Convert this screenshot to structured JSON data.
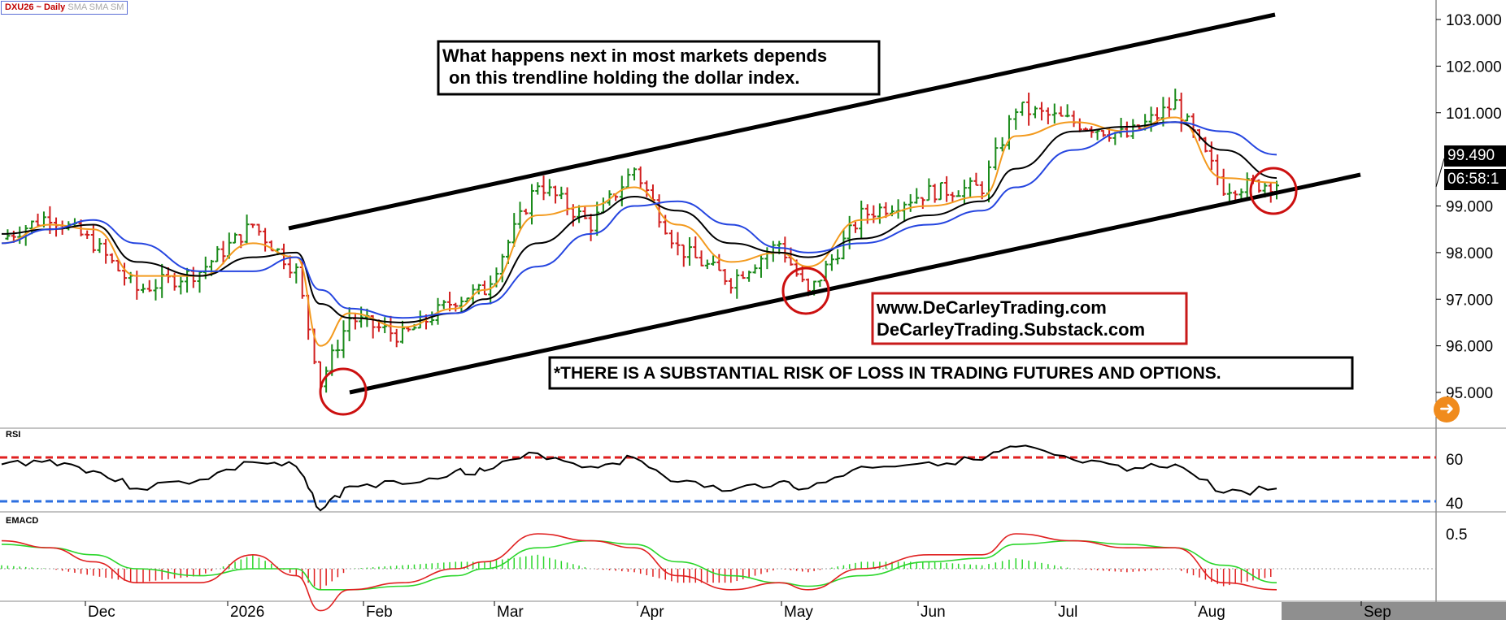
{
  "header": {
    "symbol": "DXU26 ~ Daily",
    "indicators": "SMA SMA SM"
  },
  "price_axis": {
    "labels": [
      "103.000",
      "102.000",
      "101.000",
      "99.000",
      "98.000",
      "97.000",
      "96.000",
      "95.000"
    ],
    "last_price": "99.490",
    "countdown": "06:58:1"
  },
  "time_axis": {
    "labels": [
      "Dec",
      "2026",
      "Feb",
      "Mar",
      "Apr",
      "May",
      "Jun",
      "Jul",
      "Aug",
      "Sep"
    ]
  },
  "annotations": {
    "headline_line1": "What happens next in most markets depends",
    "headline_line2": "on this trendline holding the dollar index.",
    "website1": "www.DeCarleyTrading.com",
    "website2": "DeCarleyTrading.Substack.com",
    "disclaimer": "*THERE IS A SUBSTANTIAL RISK OF LOSS IN TRADING FUTURES AND OPTIONS."
  },
  "rsi_pane": {
    "title": "RSI",
    "labels": [
      "60",
      "40"
    ]
  },
  "macd_pane": {
    "title": "EMACD",
    "labels": [
      "0.5"
    ]
  },
  "colors": {
    "up_bar": "#1a8a1a",
    "down_bar": "#d11f1f",
    "sma_fast": "#f39a1e",
    "sma_mid": "#000000",
    "sma_slow": "#2646e0",
    "rsi_upper": "#e02020",
    "rsi_lower": "#2c6fe0",
    "macd_line": "#e02020",
    "signal_line": "#2bd62b",
    "circle": "#cc1010",
    "future_shade": "#8f8f8f"
  },
  "icons": {
    "navigate": "arrow-right-icon"
  },
  "chart_data": [
    {
      "type": "line",
      "name": "price",
      "price_scale": "linear",
      "ylim": [
        94.6,
        103.2
      ],
      "x": [
        "Nov 21",
        "Dec 1",
        "Dec 10",
        "Dec 19",
        "Jan 1",
        "Jan 12",
        "Jan 21",
        "Jan 26",
        "Feb 1",
        "Feb 12",
        "Feb 23",
        "Mar 1",
        "Mar 12",
        "Mar 23",
        "Apr 1",
        "Apr 10",
        "Apr 21",
        "May 1",
        "May 7",
        "May 18",
        "Jun 1",
        "Jun 12",
        "Jun 19",
        "Jul 1",
        "Jul 12",
        "Jul 22",
        "Aug 1",
        "Aug 12"
      ],
      "close": [
        98.3,
        98.8,
        98.2,
        97.2,
        97.6,
        98.6,
        97.6,
        95.2,
        96.6,
        96.2,
        97.0,
        97.2,
        99.5,
        98.6,
        99.8,
        98.1,
        97.4,
        98.2,
        97.1,
        98.8,
        99.3,
        99.4,
        101.1,
        100.8,
        100.5,
        101.2,
        99.4,
        99.49
      ],
      "series": [
        {
          "name": "SMA",
          "values": [
            98.2,
            98.6,
            98.5,
            97.5,
            97.5,
            98.2,
            97.9,
            96.0,
            96.7,
            96.4,
            96.8,
            97.2,
            98.8,
            99.0,
            99.4,
            98.6,
            97.8,
            98.0,
            97.7,
            98.7,
            99.0,
            99.2,
            100.5,
            100.8,
            100.6,
            100.9,
            99.6,
            99.5
          ]
        },
        {
          "name": "SMA",
          "values": [
            98.4,
            98.5,
            98.6,
            97.8,
            97.5,
            97.9,
            98.0,
            96.9,
            96.6,
            96.5,
            96.7,
            97.0,
            98.2,
            98.8,
            99.2,
            98.9,
            98.2,
            98.0,
            97.9,
            98.3,
            98.8,
            99.1,
            99.8,
            100.6,
            100.7,
            100.8,
            100.2,
            99.6
          ]
        },
        {
          "name": "SMA",
          "values": [
            98.2,
            98.5,
            98.7,
            98.2,
            97.6,
            97.6,
            97.9,
            97.2,
            96.8,
            96.6,
            96.7,
            96.9,
            97.7,
            98.4,
            99.0,
            99.1,
            98.6,
            98.1,
            98.0,
            98.2,
            98.6,
            98.9,
            99.4,
            100.2,
            100.6,
            100.8,
            100.6,
            100.1
          ]
        }
      ],
      "trendlines": [
        {
          "name": "upper channel",
          "from": [
            "Jan 12",
            98.6
          ],
          "to": [
            "Aug 12",
            103.2
          ]
        },
        {
          "name": "lower trendline",
          "from": [
            "Jan 26",
            95.1
          ],
          "to": [
            "Aug 12",
            99.2
          ]
        }
      ],
      "circled_lows": [
        [
          "Jan 26",
          95.1
        ],
        [
          "May 1",
          97.2
        ],
        [
          "Aug 12",
          99.3
        ]
      ],
      "yticks": [
        95,
        96,
        97,
        98,
        99,
        101,
        102,
        103
      ]
    },
    {
      "type": "line",
      "name": "RSI",
      "levels": [
        60,
        40
      ],
      "x": [
        "Nov 21",
        "Dec 1",
        "Dec 10",
        "Dec 19",
        "Jan 1",
        "Jan 12",
        "Jan 21",
        "Jan 26",
        "Feb 1",
        "Feb 12",
        "Feb 23",
        "Mar 1",
        "Mar 12",
        "Mar 23",
        "Apr 1",
        "Apr 10",
        "Apr 21",
        "May 1",
        "May 7",
        "May 18",
        "Jun 1",
        "Jun 12",
        "Jun 19",
        "Jul 1",
        "Jul 12",
        "Jul 22",
        "Aug 1",
        "Aug 12"
      ],
      "values": [
        55,
        57,
        52,
        44,
        48,
        56,
        54,
        34,
        45,
        46,
        52,
        52,
        60,
        54,
        58,
        47,
        43,
        47,
        44,
        54,
        56,
        57,
        63,
        57,
        52,
        55,
        42,
        44
      ]
    },
    {
      "type": "line",
      "name": "EMACD",
      "x": [
        "Nov 21",
        "Dec 1",
        "Dec 10",
        "Dec 19",
        "Jan 1",
        "Jan 12",
        "Jan 21",
        "Jan 26",
        "Feb 1",
        "Feb 12",
        "Feb 23",
        "Mar 1",
        "Mar 12",
        "Mar 23",
        "Apr 1",
        "Apr 10",
        "Apr 21",
        "May 1",
        "May 7",
        "May 18",
        "Jun 1",
        "Jun 12",
        "Jun 19",
        "Jul 1",
        "Jul 12",
        "Jul 22",
        "Aug 1",
        "Aug 12"
      ],
      "macd": [
        0.4,
        0.3,
        0.1,
        -0.2,
        -0.2,
        0.2,
        -0.1,
        -0.6,
        -0.3,
        -0.2,
        0.0,
        0.1,
        0.5,
        0.4,
        0.3,
        -0.1,
        -0.3,
        -0.2,
        -0.3,
        0.0,
        0.2,
        0.2,
        0.5,
        0.4,
        0.3,
        0.3,
        -0.2,
        -0.3
      ],
      "signal": [
        0.35,
        0.3,
        0.2,
        0.0,
        -0.1,
        0.0,
        0.0,
        -0.3,
        -0.3,
        -0.25,
        -0.1,
        0.0,
        0.3,
        0.4,
        0.35,
        0.1,
        -0.1,
        -0.2,
        -0.25,
        -0.1,
        0.1,
        0.15,
        0.35,
        0.4,
        0.35,
        0.3,
        0.05,
        -0.2
      ],
      "yticks": [
        0.5
      ]
    }
  ]
}
